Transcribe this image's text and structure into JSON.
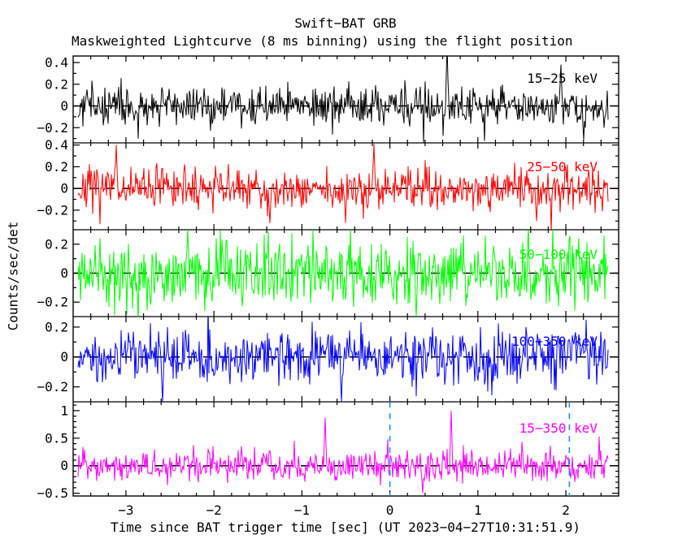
{
  "figure": {
    "title": "Swift−BAT GRB",
    "subtitle": "Maskweighted Lightcurve (8 ms binning) using the flight position"
  },
  "chart_data": {
    "type": "line",
    "title": "Swift−BAT GRB",
    "subtitle": "Maskweighted Lightcurve (8 ms binning) using the flight position",
    "xlabel": "Time since BAT trigger time [sec] (UT 2023−04−27T10:31:51.9)",
    "ylabel": "Counts/sec/det",
    "binning": "8 ms",
    "grid": false,
    "background_color": "#ffffff",
    "frame_color": "#000000",
    "xlim": [
      -3.6,
      2.6
    ],
    "data_x_range": [
      -3.55,
      2.48
    ],
    "x_major_ticks": [
      -3,
      -2,
      -1,
      0,
      1,
      2
    ],
    "x_tick_labels": [
      "−3",
      "−2",
      "−1",
      "0",
      "1",
      "2"
    ],
    "x_minor_step": 0.2,
    "data_description": "Mask-weighted count-rate per detector in five energy bands; each series is statistical noise fluctuating about baseline 0 with no obvious burst profile.",
    "zero_line": {
      "value": 0,
      "style": "dashed",
      "color": "#000000"
    },
    "trigger_markers": {
      "times": [
        0,
        2.04
      ],
      "style": "dashed",
      "color": "#1e90ff",
      "shown_in_band": "15−350 keV"
    },
    "panels": [
      {
        "band": "15−25 keV",
        "color": "#000000",
        "ylim": [
          -0.34,
          0.46
        ],
        "yticks": [
          0.4,
          0.2,
          0,
          -0.2
        ],
        "ytick_labels": [
          "0.4",
          "0.2",
          "0",
          "−0.2"
        ],
        "y_minor_step": 0.1,
        "baseline": 0,
        "noise_sigma": 0.085,
        "notable_peaks": [
          {
            "t": 0.65,
            "y": 0.55
          },
          {
            "t": 1.94,
            "y": 0.38
          },
          {
            "t": 2.2,
            "y": -0.31
          }
        ]
      },
      {
        "band": "25−50 keV",
        "color": "#ff0000",
        "ylim": [
          -0.38,
          0.42
        ],
        "yticks": [
          0.4,
          0.2,
          0,
          -0.2
        ],
        "ytick_labels": [
          "0.4",
          "0.2",
          "0",
          "−0.2"
        ],
        "y_minor_step": 0.1,
        "baseline": 0,
        "noise_sigma": 0.095,
        "notable_peaks": [
          {
            "t": -3.11,
            "y": 0.4
          },
          {
            "t": -0.18,
            "y": 0.41
          },
          {
            "t": -1.36,
            "y": -0.32
          },
          {
            "t": 1.67,
            "y": -0.3
          }
        ]
      },
      {
        "band": "50−100 keV",
        "color": "#00ff00",
        "ylim": [
          -0.3,
          0.3
        ],
        "yticks": [
          0.2,
          0,
          -0.2
        ],
        "ytick_labels": [
          "0.2",
          "0",
          "−0.2"
        ],
        "y_minor_step": 0.1,
        "baseline": 0,
        "noise_sigma": 0.11,
        "notable_peaks": [
          {
            "t": -2.3,
            "y": 0.3
          },
          {
            "t": 0.3,
            "y": -0.3
          }
        ]
      },
      {
        "band": "100−350 keV",
        "color": "#0000ff",
        "ylim": [
          -0.3,
          0.27
        ],
        "yticks": [
          0.2,
          0,
          -0.2
        ],
        "ytick_labels": [
          "0.2",
          "0",
          "−0.2"
        ],
        "y_minor_step": 0.1,
        "baseline": 0,
        "noise_sigma": 0.09,
        "notable_peaks": [
          {
            "t": -2.58,
            "y": -0.3
          },
          {
            "t": -0.55,
            "y": -0.3
          }
        ]
      },
      {
        "band": "15−350 keV",
        "color": "#ff00ff",
        "ylim": [
          -0.55,
          1.16
        ],
        "yticks": [
          1,
          0.5,
          0,
          -0.5
        ],
        "ytick_labels": [
          "1",
          "0.5",
          "0",
          "−0.5"
        ],
        "y_minor_step": 0.1,
        "baseline": 0,
        "noise_sigma": 0.13,
        "notable_peaks": [
          {
            "t": 0.7,
            "y": 1.0
          },
          {
            "t": -0.74,
            "y": 0.87
          },
          {
            "t": 2.47,
            "y": 0.8
          },
          {
            "t": 0.37,
            "y": -0.5
          }
        ]
      }
    ]
  }
}
